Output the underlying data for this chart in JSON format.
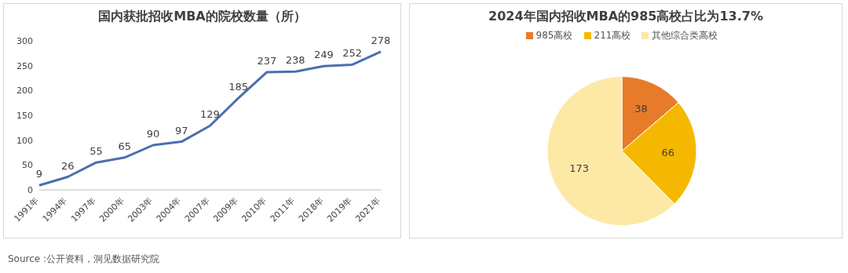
{
  "chart_data": [
    {
      "type": "line",
      "title": "国内获批招收MBA的院校数量（所）",
      "categories": [
        "1991年",
        "1994年",
        "1997年",
        "2000年",
        "2003年",
        "2004年",
        "2007年",
        "2009年",
        "2010年",
        "2011年",
        "2018年",
        "2019年",
        "2021年"
      ],
      "values": [
        9,
        26,
        55,
        65,
        90,
        97,
        129,
        185,
        237,
        238,
        249,
        252,
        278
      ],
      "color": "#4a6fb0",
      "ylim": [
        0,
        300
      ],
      "yticks": [
        0,
        50,
        100,
        150,
        200,
        250,
        300
      ],
      "grid": false,
      "data_labels": true,
      "marker": "none",
      "annotations": [
        "Source :公开资料，洞见数据研究院"
      ]
    },
    {
      "type": "pie",
      "title": "2024年国内招收MBA的985高校占比为13.7%",
      "categories": [
        "985高校",
        "211高校",
        "其他综合类高校"
      ],
      "values": [
        38,
        66,
        173
      ],
      "colors": [
        "#e87b2a",
        "#f5b800",
        "#fde9a6"
      ],
      "legend": "top",
      "data_labels": true
    }
  ]
}
